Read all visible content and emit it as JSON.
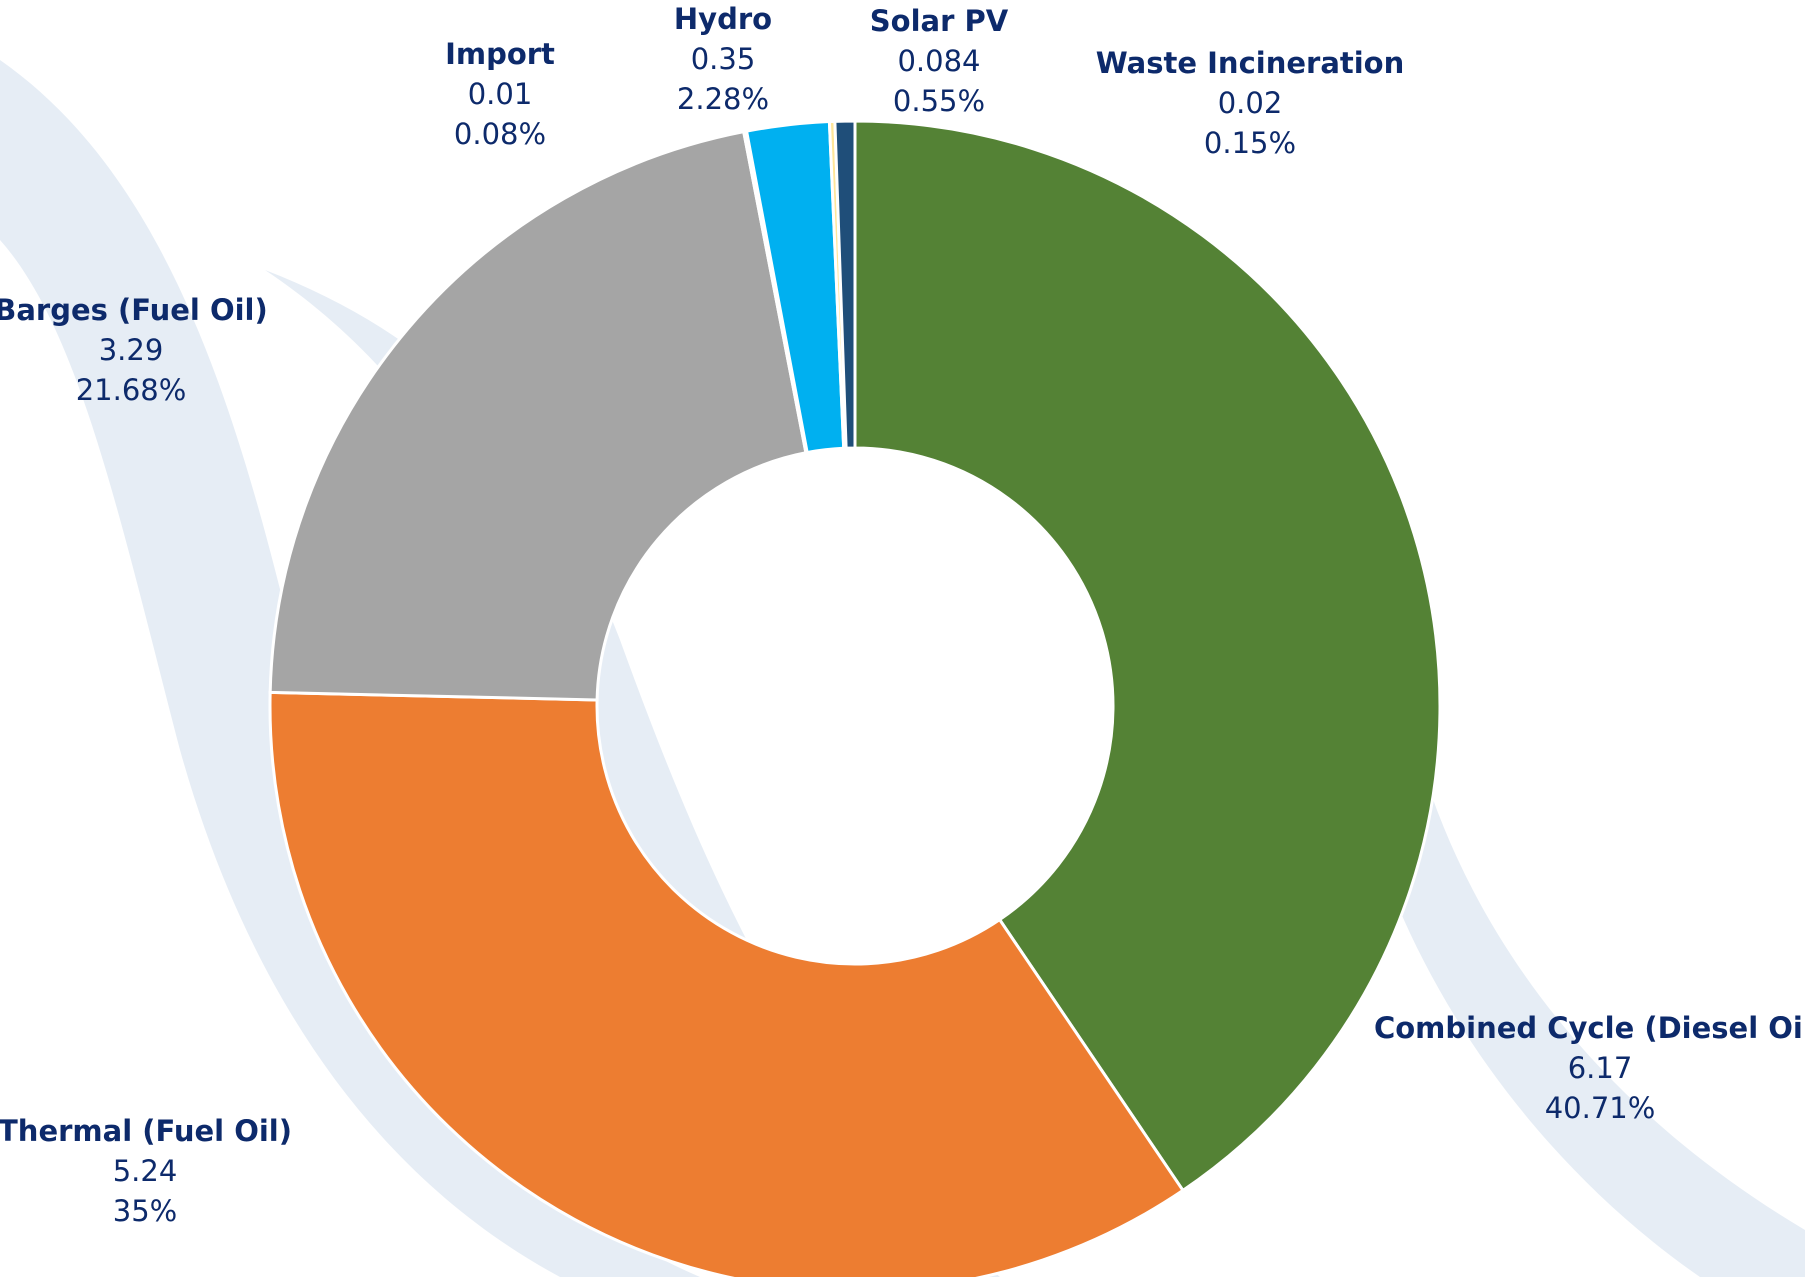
{
  "chart_data": {
    "type": "donut",
    "categories": [
      "Combined Cycle (Diesel Oil)",
      "Thermal (Fuel Oil)",
      "Barges (Fuel Oil)",
      "Import",
      "Hydro",
      "Waste Incineration",
      "Solar PV"
    ],
    "values": [
      6.17,
      5.24,
      3.29,
      0.01,
      0.35,
      0.02,
      0.084
    ],
    "shares": [
      40.71,
      35,
      21.68,
      0.08,
      2.28,
      0.15,
      0.55
    ],
    "share_labels": [
      "40.71%",
      "35%",
      "21.68%",
      "0.08%",
      "2.28%",
      "0.15%",
      "0.55%"
    ],
    "colors": [
      "#548235",
      "#ed7d31",
      "#a5a5a5",
      "#ffc000",
      "#00b0f0",
      "#ffe699",
      "#1f4e79"
    ]
  }
}
